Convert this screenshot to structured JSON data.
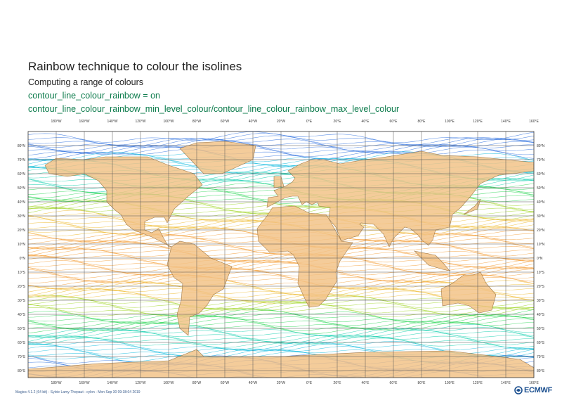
{
  "header": {
    "title": "Rainbow technique to colour the isolines",
    "subtitle": "Computing a range of colours",
    "line1": "contour_line_colour_rainbow = on",
    "line2": "contour_line_colour_rainbow_min_level_colour/contour_line_colour_rainbow_max_level_colour"
  },
  "map": {
    "lon_labels": [
      "180°W",
      "160°W",
      "140°W",
      "120°W",
      "100°W",
      "80°W",
      "60°W",
      "40°W",
      "20°W",
      "0°E",
      "20°E",
      "40°E",
      "60°E",
      "80°E",
      "100°E",
      "120°E",
      "140°E",
      "160°E"
    ],
    "lat_labels": [
      "80°N",
      "70°N",
      "60°N",
      "50°N",
      "40°N",
      "30°N",
      "20°N",
      "10°N",
      "0°N",
      "10°S",
      "20°S",
      "30°S",
      "40°S",
      "50°S",
      "60°S",
      "70°S",
      "80°S"
    ],
    "colors": {
      "land": "#f2c184",
      "coast": "#a07a4a",
      "grid": "#555555"
    }
  },
  "footer": {
    "caption": "Magics 4.1.2 (64 bit) - Sylvie Lamy-Thepaut - cylon - Mon Sep 30 09:38:04 2019",
    "logo": "ECMWF",
    "logo_icon": "ecmwf-swirl-icon"
  }
}
